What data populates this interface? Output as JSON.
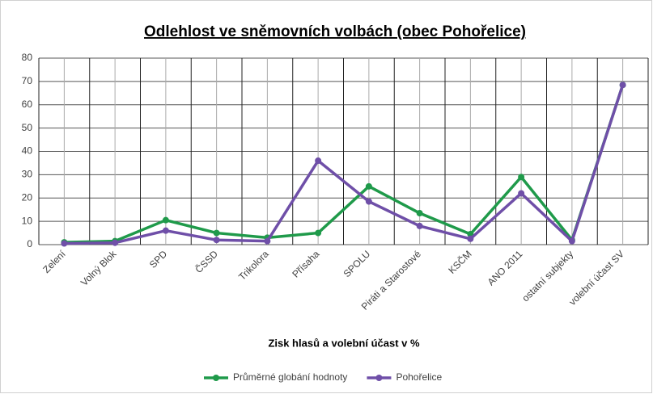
{
  "chart_data": {
    "type": "line",
    "title": "Odlehlost ve sněmovních volbách (obec Pohořelice)",
    "x_label": "Zisk hlasů a volební účast v %",
    "categories": [
      "Zelení",
      "Volný Blok",
      "SPD",
      "ČSSD",
      "Trikolora",
      "Přísaha",
      "SPOLU",
      "Piráti a Starostové",
      "KSČM",
      "ANO 2011",
      "ostatní subjekty",
      "volební účast SV"
    ],
    "series": [
      {
        "name": "Průměrné globání hodnoty",
        "color": "#1f9a4a",
        "values": [
          1,
          1.5,
          10.5,
          5,
          3,
          5,
          25,
          13.5,
          4.5,
          29,
          2,
          68.5
        ]
      },
      {
        "name": "Pohořelice",
        "color": "#6f4fa8",
        "values": [
          0.5,
          0.8,
          6,
          2,
          1.5,
          36,
          18.5,
          8,
          2.5,
          22,
          1.5,
          68.5
        ]
      }
    ],
    "ylim": [
      0,
      80
    ],
    "yticks": [
      0,
      10,
      20,
      30,
      40,
      50,
      60,
      70,
      80
    ],
    "grid": true,
    "legend": "bottom"
  }
}
